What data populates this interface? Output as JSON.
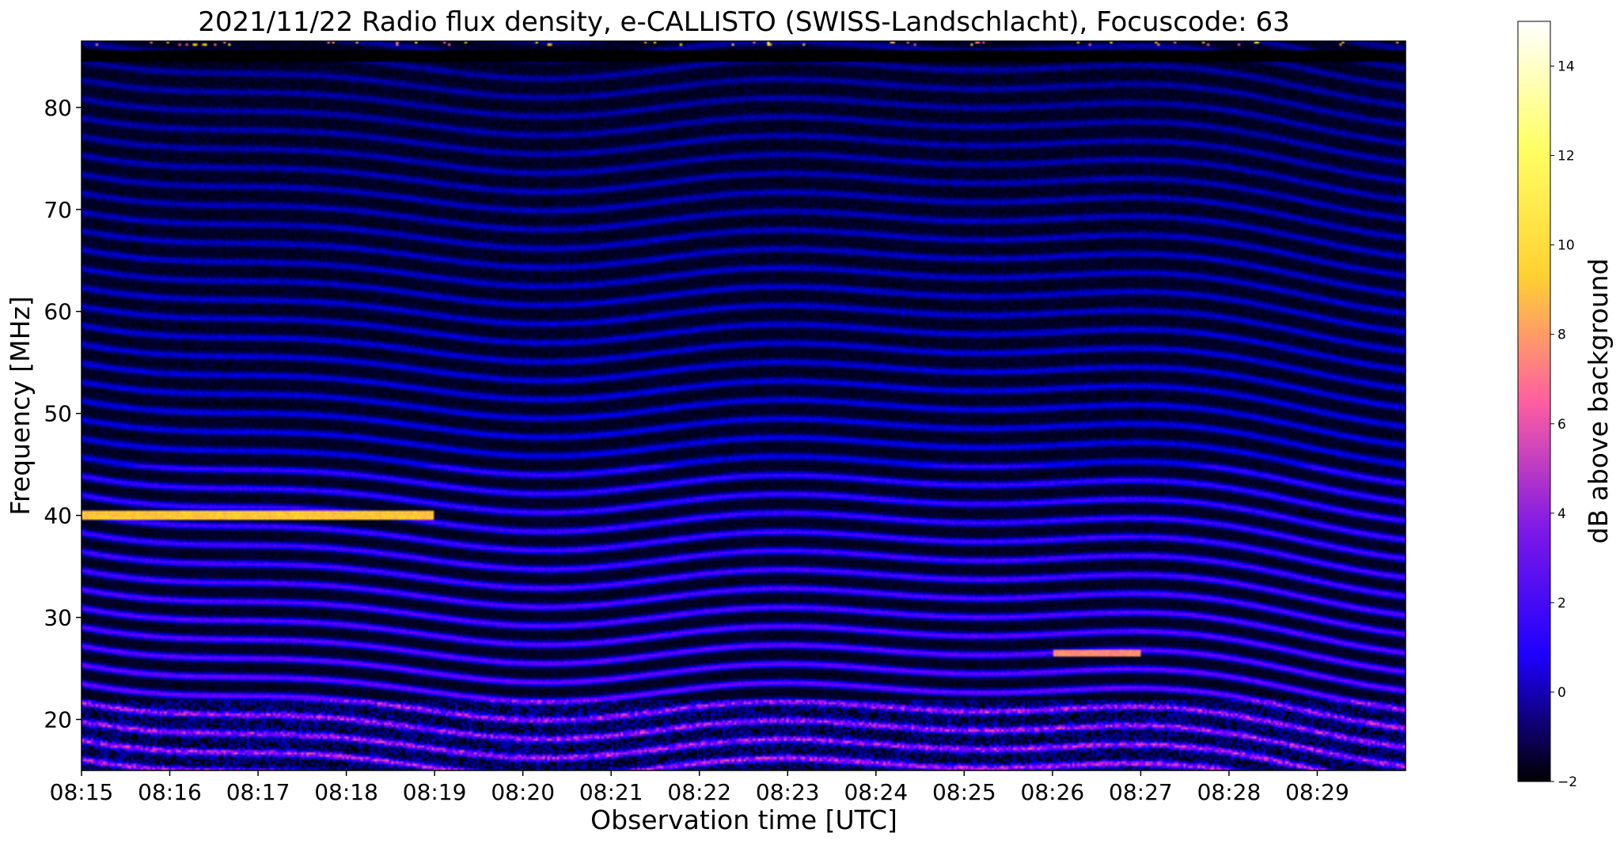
{
  "chart_data": {
    "type": "heatmap",
    "title": "2021/11/22  Radio flux density, e-CALLISTO (SWISS-Landschlacht), Focuscode: 63",
    "xlabel": "Observation time [UTC]",
    "ylabel": "Frequency [MHz]",
    "x_ticks": [
      "08:15",
      "08:16",
      "08:17",
      "08:18",
      "08:19",
      "08:20",
      "08:21",
      "08:22",
      "08:23",
      "08:24",
      "08:25",
      "08:26",
      "08:27",
      "08:28",
      "08:29"
    ],
    "x_range": [
      "08:15",
      "08:30"
    ],
    "y_ticks": [
      20,
      30,
      40,
      50,
      60,
      70,
      80
    ],
    "ylim": [
      15,
      86.5
    ],
    "colorbar": {
      "label": "dB above background",
      "ticks": [
        -2,
        0,
        2,
        4,
        6,
        8,
        10,
        12,
        14
      ],
      "range": [
        -2,
        15
      ],
      "colormap": "gnuplot2",
      "colors": [
        "#000000",
        "#1e00ff",
        "#7f19e6",
        "#ff5fa0",
        "#ffd232",
        "#ffff64",
        "#ffffff"
      ]
    },
    "features": {
      "harmonic_bands": "quasi-periodic bright stripes across 15–80 MHz drifting in frequency over time",
      "interference_line": {
        "freq_mhz": 40,
        "from": "08:15",
        "to": "08:19",
        "level_db": 11
      },
      "second_line": {
        "freq_mhz": 26.5,
        "from": "08:26",
        "to": "08:27",
        "level_db": 9
      },
      "top_band_mhz": 85,
      "low_freq_noise_below_mhz": 22
    }
  }
}
